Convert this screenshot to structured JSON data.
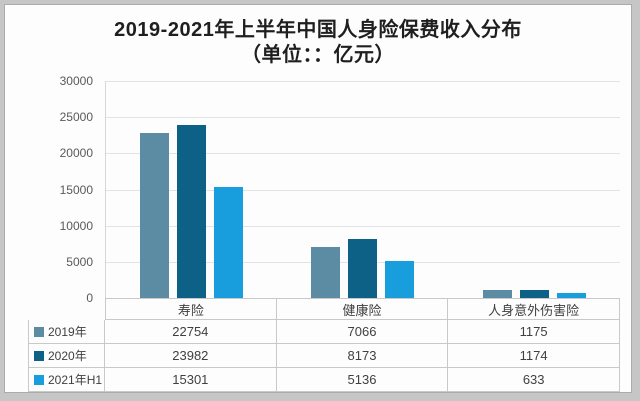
{
  "chart_data": {
    "type": "bar",
    "title": "2019-2021年上半年中国人身险保费收入分布",
    "subtitle": "（单位：：亿元）",
    "categories": [
      "寿险",
      "健康险",
      "人身意外伤害险"
    ],
    "series": [
      {
        "name": "2019年",
        "color": "#5b8ca3",
        "values": [
          22754,
          7066,
          1175
        ]
      },
      {
        "name": "2020年",
        "color": "#0d6186",
        "values": [
          23982,
          8173,
          1174
        ]
      },
      {
        "name": "2021年H1",
        "color": "#189edc",
        "values": [
          15301,
          5136,
          633
        ]
      }
    ],
    "ylim": [
      0,
      30000
    ],
    "ytick_interval": 5000,
    "yticks": [
      "30000",
      "25000",
      "20000",
      "15000",
      "10000",
      "5000",
      "0"
    ],
    "grid": true,
    "legend_position": "data-table-left",
    "has_data_table": true
  },
  "colors": {
    "page_background": "#c6c6c6",
    "panel_background": "#fdfdfd",
    "panel_border": "#ababab",
    "gridline": "#e3e3e3",
    "table_border": "#c9c9c9",
    "axis_text": "#595959",
    "title_text": "#1f1f1f"
  }
}
